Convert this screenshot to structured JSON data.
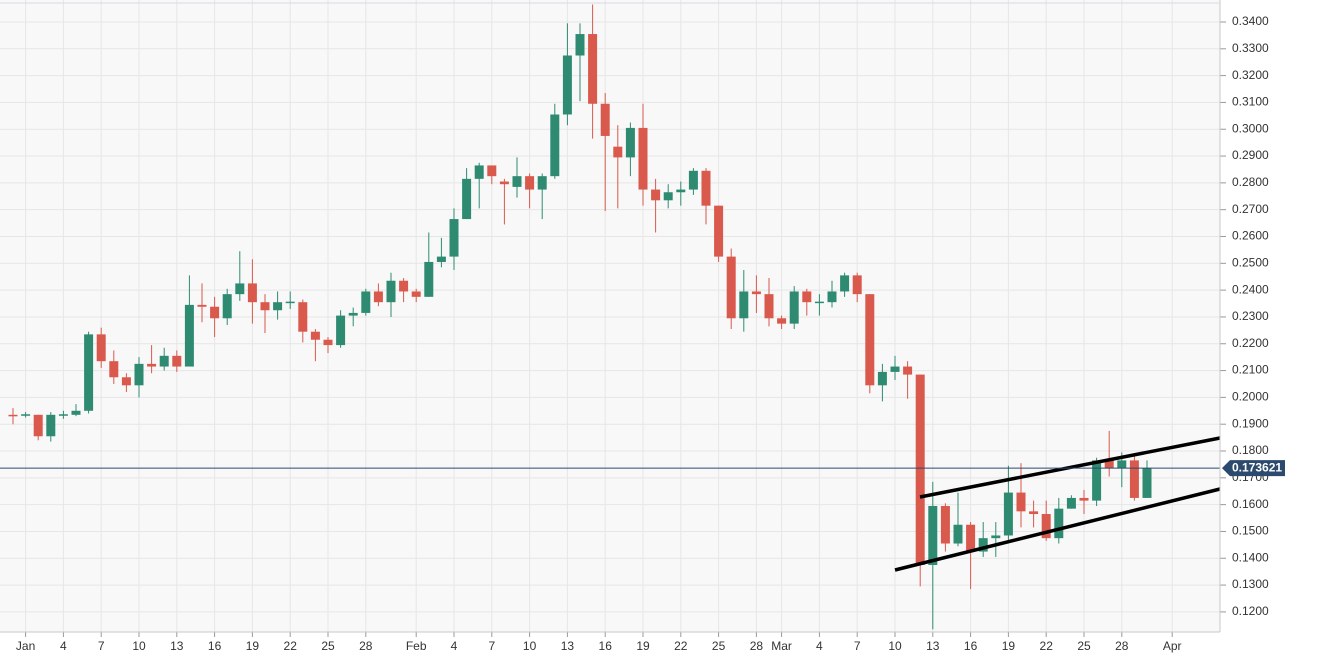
{
  "chart_data": {
    "type": "candlestick",
    "categories": [
      null,
      "Jan",
      null,
      null,
      "4",
      null,
      null,
      "7",
      null,
      null,
      "10",
      null,
      null,
      "13",
      null,
      null,
      "16",
      null,
      null,
      "19",
      null,
      null,
      "22",
      null,
      null,
      "25",
      null,
      null,
      "28",
      null,
      null,
      null,
      "Feb",
      null,
      null,
      "4",
      null,
      null,
      "7",
      null,
      null,
      "10",
      null,
      null,
      "13",
      null,
      null,
      "16",
      null,
      null,
      "19",
      null,
      null,
      "22",
      null,
      null,
      "25",
      null,
      null,
      "28",
      null,
      "Mar",
      null,
      null,
      "4",
      null,
      null,
      "7",
      null,
      null,
      "10",
      null,
      null,
      "13",
      null,
      null,
      "16",
      null,
      null,
      "19",
      null,
      null,
      "22",
      null,
      null,
      "25",
      null,
      null,
      "28",
      null,
      null,
      null,
      "Apr"
    ],
    "open": [
      0.1935,
      0.1935,
      0.1935,
      0.1855,
      0.1935,
      0.1935,
      0.195,
      0.2235,
      0.2135,
      0.2075,
      0.2045,
      0.2125,
      0.2115,
      0.2155,
      0.2115,
      0.2345,
      0.2338,
      0.2295,
      0.2385,
      0.2425,
      0.2355,
      0.2325,
      0.2355,
      0.2355,
      0.2245,
      0.2215,
      0.2195,
      0.2305,
      0.2315,
      0.2395,
      0.2355,
      0.2435,
      0.2395,
      0.2375,
      0.2505,
      0.2525,
      0.2665,
      0.2815,
      0.2865,
      0.2805,
      0.2785,
      0.2825,
      0.2775,
      0.2825,
      0.3055,
      0.3275,
      0.3355,
      0.3095,
      0.2935,
      0.2895,
      0.3005,
      0.2775,
      0.2735,
      0.2765,
      0.2775,
      0.2845,
      0.2715,
      0.2525,
      0.2295,
      0.2395,
      0.2385,
      0.2295,
      0.2275,
      0.2395,
      0.2355,
      0.2355,
      0.2395,
      0.2455,
      0.2385,
      0.2045,
      0.2095,
      0.2115,
      0.2085,
      0.1375,
      0.1595,
      0.1455,
      0.1525,
      0.1425,
      0.1475,
      0.1485,
      0.1645,
      0.1575,
      0.1565,
      0.1475,
      0.1585,
      0.1625,
      0.1615,
      0.1765,
      0.1735,
      0.1765,
      0.1625,
      null,
      null
    ],
    "high": [
      0.196,
      0.1945,
      0.1935,
      0.1945,
      0.195,
      0.1975,
      0.2245,
      0.226,
      0.2175,
      0.209,
      0.215,
      0.2195,
      0.2185,
      0.2175,
      0.2455,
      0.2425,
      0.2375,
      0.2405,
      0.2545,
      0.2515,
      0.2385,
      0.2395,
      0.2395,
      0.2365,
      0.2255,
      0.2225,
      0.2325,
      0.2335,
      0.2405,
      0.2425,
      0.2465,
      0.2445,
      0.2405,
      0.2615,
      0.2595,
      0.2705,
      0.2855,
      0.2875,
      0.2865,
      0.2815,
      0.2895,
      0.2835,
      0.2835,
      0.3095,
      0.3395,
      0.3395,
      0.3465,
      0.3135,
      0.3015,
      0.3025,
      0.3095,
      0.2815,
      0.2795,
      0.2805,
      0.2855,
      0.2855,
      0.2715,
      0.2555,
      0.2475,
      0.2455,
      0.2445,
      0.2305,
      0.2415,
      0.2405,
      0.2385,
      0.2435,
      0.2465,
      0.2465,
      0.2385,
      0.2125,
      0.2155,
      0.2135,
      0.2085,
      0.1685,
      0.1605,
      0.1645,
      0.1535,
      0.1535,
      0.1535,
      0.1745,
      0.1755,
      0.1615,
      0.1615,
      0.1625,
      0.1635,
      0.1655,
      0.1775,
      0.1875,
      0.1795,
      0.1785,
      0.1765,
      null,
      null
    ],
    "low": [
      0.19,
      0.1925,
      0.184,
      0.1835,
      0.192,
      0.193,
      0.194,
      0.211,
      0.205,
      0.202,
      0.2,
      0.209,
      0.21,
      0.2095,
      0.2115,
      0.228,
      0.2225,
      0.227,
      0.236,
      0.2275,
      0.224,
      0.229,
      0.233,
      0.2205,
      0.2135,
      0.2165,
      0.2185,
      0.2265,
      0.2305,
      0.234,
      0.23,
      0.2355,
      0.2355,
      0.2375,
      0.2485,
      0.2475,
      0.2665,
      0.2705,
      0.2795,
      0.2645,
      0.2745,
      0.2705,
      0.2665,
      0.2815,
      0.3015,
      0.3105,
      0.2965,
      0.2695,
      0.2705,
      0.2825,
      0.2715,
      0.2615,
      0.2705,
      0.2715,
      0.2755,
      0.2645,
      0.2505,
      0.2255,
      0.2245,
      0.2315,
      0.2265,
      0.2255,
      0.2255,
      0.2305,
      0.2305,
      0.2335,
      0.2375,
      0.2355,
      0.2015,
      0.1985,
      0.2065,
      0.1995,
      0.1295,
      0.1135,
      0.1425,
      0.1445,
      0.1285,
      0.1405,
      0.1405,
      0.1455,
      0.1515,
      0.1515,
      0.1465,
      0.1455,
      0.1585,
      0.1565,
      0.1595,
      0.1705,
      0.1665,
      0.1615,
      0.1625,
      null,
      null
    ],
    "close": [
      0.1932,
      0.1937,
      0.1855,
      0.1935,
      0.1937,
      0.195,
      0.2235,
      0.2135,
      0.2075,
      0.2045,
      0.2125,
      0.2115,
      0.2155,
      0.2115,
      0.2345,
      0.2338,
      0.2295,
      0.2385,
      0.2425,
      0.2355,
      0.2325,
      0.2355,
      0.2357,
      0.2245,
      0.2215,
      0.2195,
      0.2305,
      0.2315,
      0.2395,
      0.2355,
      0.2435,
      0.2395,
      0.2375,
      0.2505,
      0.2525,
      0.2665,
      0.2815,
      0.2865,
      0.2825,
      0.2795,
      0.2825,
      0.2775,
      0.2825,
      0.3055,
      0.3275,
      0.3355,
      0.3095,
      0.2975,
      0.2895,
      0.3005,
      0.2775,
      0.2735,
      0.2765,
      0.2775,
      0.2845,
      0.2715,
      0.2525,
      0.2295,
      0.2395,
      0.2385,
      0.2295,
      0.2275,
      0.2395,
      0.2355,
      0.2357,
      0.2395,
      0.2455,
      0.2385,
      0.2045,
      0.2095,
      0.2115,
      0.2085,
      0.1375,
      0.1595,
      0.1455,
      0.1525,
      0.1425,
      0.1475,
      0.1485,
      0.1645,
      0.1575,
      0.1565,
      0.1475,
      0.1585,
      0.1625,
      0.1615,
      0.1765,
      0.1735,
      0.1765,
      0.1625,
      0.1736,
      null,
      null
    ],
    "up_color": "#2e8b72",
    "down_color": "#d9594c",
    "last_price": 0.173621,
    "last_price_color": "#2c4a6e",
    "ylim": [
      0.1125,
      0.3482
    ],
    "yticks": [
      {
        "value": 0.12,
        "label": "0.1200"
      },
      {
        "value": 0.13,
        "label": "0.1300"
      },
      {
        "value": 0.14,
        "label": "0.1400"
      },
      {
        "value": 0.15,
        "label": "0.1500"
      },
      {
        "value": 0.16,
        "label": "0.1600"
      },
      {
        "value": 0.17,
        "label": "0.1700"
      },
      {
        "value": 0.18,
        "label": "0.1800"
      },
      {
        "value": 0.19,
        "label": "0.1900"
      },
      {
        "value": 0.2,
        "label": "0.2000"
      },
      {
        "value": 0.21,
        "label": "0.2100"
      },
      {
        "value": 0.22,
        "label": "0.2200"
      },
      {
        "value": 0.23,
        "label": "0.2300"
      },
      {
        "value": 0.24,
        "label": "0.2400"
      },
      {
        "value": 0.25,
        "label": "0.2500"
      },
      {
        "value": 0.26,
        "label": "0.2600"
      },
      {
        "value": 0.27,
        "label": "0.2700"
      },
      {
        "value": 0.28,
        "label": "0.2800"
      },
      {
        "value": 0.29,
        "label": "0.2900"
      },
      {
        "value": 0.3,
        "label": "0.3000"
      },
      {
        "value": 0.31,
        "label": "0.3100"
      },
      {
        "value": 0.32,
        "label": "0.3200"
      },
      {
        "value": 0.33,
        "label": "0.3300"
      },
      {
        "value": 0.34,
        "label": "0.3400"
      }
    ],
    "grid": true
  }
}
